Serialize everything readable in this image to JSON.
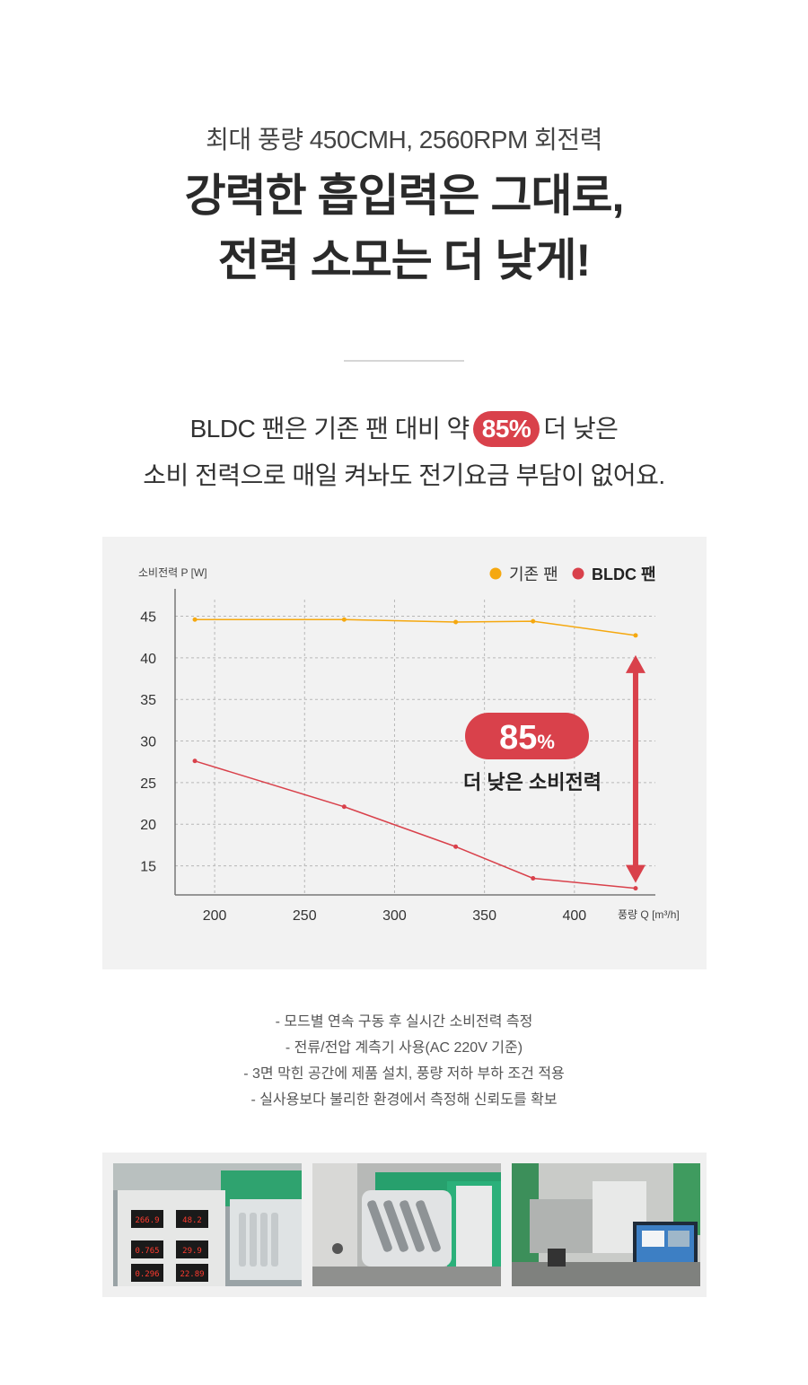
{
  "header": {
    "subtitle": "최대 풍량 450CMH, 2560RPM 회전력",
    "title_line1": "강력한 흡입력은 그대로,",
    "title_line2": "전력 소모는 더 낮게!"
  },
  "description": {
    "line1_before": "BLDC 팬은 기존 팬 대비 약",
    "highlight": "85%",
    "line1_after": "더 낮은",
    "line2": "소비 전력으로 매일 켜놔도 전기요금 부담이 없어요."
  },
  "colors": {
    "existing": "#f5a80f",
    "bldc": "#d9414b",
    "accent": "#d9414b"
  },
  "chart_data": {
    "type": "line",
    "ylabel": "소비전력 P [W]",
    "xlabel": "풍량 Q [m³/h]",
    "xlim": [
      178,
      445
    ],
    "ylim": [
      11.5,
      47
    ],
    "xticks": [
      200,
      250,
      300,
      350,
      400
    ],
    "yticks": [
      15,
      20,
      25,
      30,
      35,
      40,
      45
    ],
    "grid": true,
    "legend_position": "top-right",
    "series": [
      {
        "name": "기존 팬",
        "color": "#f5a80f",
        "x": [
          189,
          272,
          334,
          377,
          434
        ],
        "y": [
          44.6,
          44.6,
          44.3,
          44.4,
          42.7
        ]
      },
      {
        "name": "BLDC 팬",
        "color": "#d9414b",
        "x": [
          189,
          272,
          334,
          377,
          434
        ],
        "y": [
          27.6,
          22.1,
          17.3,
          13.5,
          12.3
        ]
      }
    ],
    "annotation": {
      "value": "85",
      "unit": "%",
      "text": "더 낮은 소비전력"
    }
  },
  "notes": [
    "-  모드별 연속 구동 후 실시간 소비전력 측정",
    "-  전류/전압 계측기 사용(AC 220V 기준)",
    "-  3면 막힌 공간에 제품 설치, 풍량 저하 부하 조건 적용",
    "-  실사용보다 불리한 환경에서 측정해 신뢰도를 확보"
  ],
  "photos": {
    "meter_readings": [
      "266.9",
      "48.2",
      "0.765",
      "29.9",
      "0.296",
      "22.89"
    ]
  }
}
